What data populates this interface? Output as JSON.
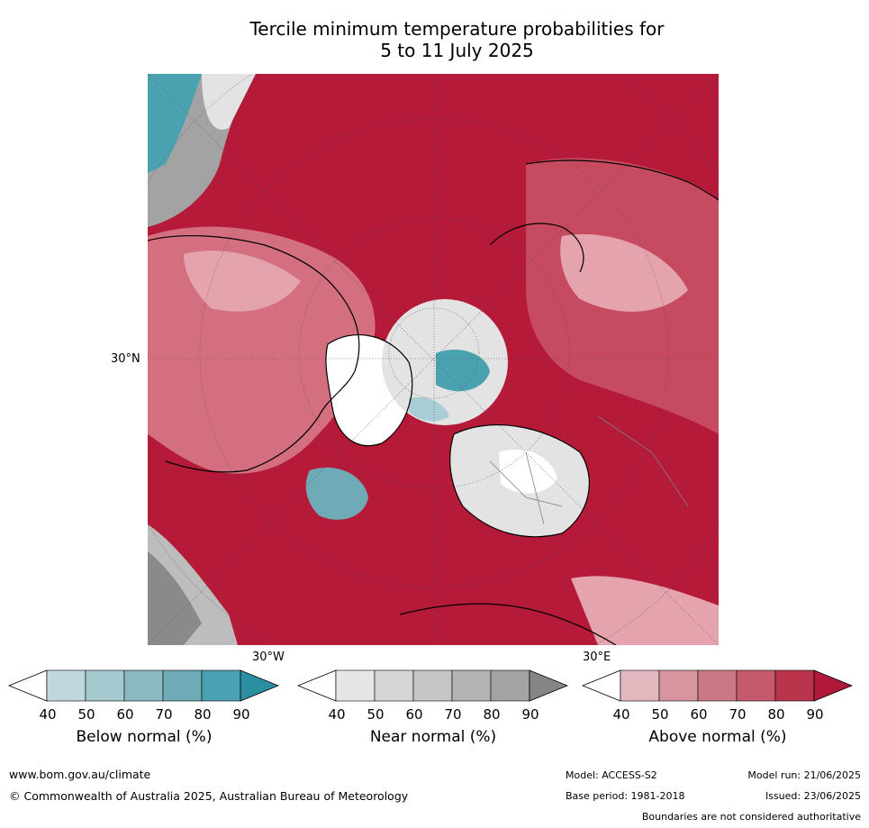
{
  "title": {
    "line1": "Tercile minimum temperature probabilities for",
    "line2": "5 to 11 July 2025"
  },
  "map": {
    "lat_label": "30°N",
    "lon_labels": [
      "30°W",
      "30°E"
    ],
    "colors": {
      "ocean_above": "#b51a38",
      "land_above_mid": "#d36f7e",
      "land_above_low": "#e5a3ad",
      "near_normal_light": "#e3e3e3",
      "near_normal_mid": "#bdbdbd",
      "below_normal": "#4aa2b1",
      "below_normal_light": "#a8cdd5",
      "coastline": "#000000",
      "border": "#808080"
    }
  },
  "colorbars": [
    {
      "label": "Below normal (%)",
      "ticks": [
        "40",
        "50",
        "60",
        "70",
        "80",
        "90"
      ],
      "colors": [
        "#ffffff",
        "#bed8de",
        "#a6c8cf",
        "#8cb8c3",
        "#6eabb7",
        "#4aa1b1",
        "#2b8fa2"
      ]
    },
    {
      "label": "Near normal (%)",
      "ticks": [
        "40",
        "50",
        "60",
        "70",
        "80",
        "90"
      ],
      "colors": [
        "#ffffff",
        "#e6e6e6",
        "#d6d6d6",
        "#c6c6c6",
        "#b4b4b4",
        "#a3a3a3",
        "#858585"
      ]
    },
    {
      "label": "Above normal (%)",
      "ticks": [
        "40",
        "50",
        "60",
        "70",
        "80",
        "90"
      ],
      "colors": [
        "#ffffff",
        "#e4b7be",
        "#d7959f",
        "#cc7884",
        "#c45a6b",
        "#ba344c",
        "#b0193a"
      ]
    }
  ],
  "footer": {
    "url": "www.bom.gov.au/climate",
    "copyright": "© Commonwealth of Australia 2025, Australian Bureau of Meteorology",
    "model": "Model: ACCESS-S2",
    "base_period": "Base period: 1981-2018",
    "model_run": "Model run: 21/06/2025",
    "issued": "Issued: 23/06/2025",
    "disclaimer": "Boundaries are not considered authoritative"
  }
}
